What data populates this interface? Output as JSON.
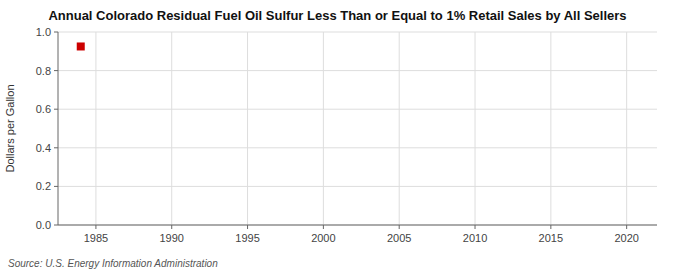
{
  "chart_data": {
    "type": "scatter",
    "title": "Annual Colorado Residual Fuel Oil Sulfur Less Than or Equal to 1% Retail Sales by All Sellers",
    "y_label": "Dollars per Gallon",
    "source": "Source: U.S. Energy Information Administration",
    "x": [
      1984
    ],
    "values": [
      0.925
    ],
    "color": "#cc0000",
    "marker": "square",
    "xlim": [
      1982.5,
      2022
    ],
    "ylim": [
      0.0,
      1.0
    ],
    "xticks": [
      1985,
      1990,
      1995,
      2000,
      2005,
      2010,
      2015,
      2020
    ],
    "yticks": [
      {
        "value": 0.0,
        "label": "0.0"
      },
      0.2,
      0.4,
      0.6,
      0.8,
      {
        "value": 1.0,
        "label": "1.0"
      }
    ],
    "grid": true
  }
}
